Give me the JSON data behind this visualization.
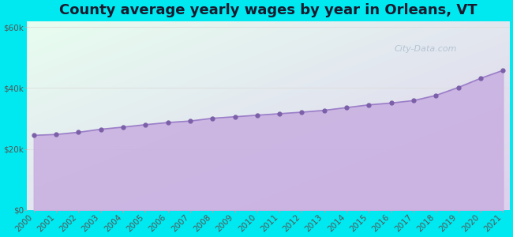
{
  "title": "County average yearly wages by year in Orleans, VT",
  "years": [
    2000,
    2001,
    2002,
    2003,
    2004,
    2005,
    2006,
    2007,
    2008,
    2009,
    2010,
    2011,
    2012,
    2013,
    2014,
    2015,
    2016,
    2017,
    2018,
    2019,
    2020,
    2021
  ],
  "values": [
    24500,
    24800,
    25500,
    26500,
    27200,
    28000,
    28700,
    29200,
    30100,
    30600,
    31100,
    31600,
    32100,
    32700,
    33600,
    34500,
    35100,
    35900,
    37600,
    40200,
    43200,
    45800
  ],
  "fill_color": "#c8aee0",
  "fill_alpha": 0.85,
  "line_color": "#9b7ec8",
  "marker_color": "#7b5fa8",
  "marker_size": 3.5,
  "line_width": 1.2,
  "bg_outer": "#00e8f0",
  "bg_top_left": "#e8fef0",
  "bg_bottom_right": "#ddd0ee",
  "grid_color": "#dddddd",
  "ytick_labels": [
    "$0",
    "$20k",
    "$40k",
    "$60k"
  ],
  "ytick_values": [
    0,
    20000,
    40000,
    60000
  ],
  "ylim": [
    0,
    62000
  ],
  "watermark_text": "City-Data.com",
  "title_fontsize": 13,
  "tick_fontsize": 7.5
}
